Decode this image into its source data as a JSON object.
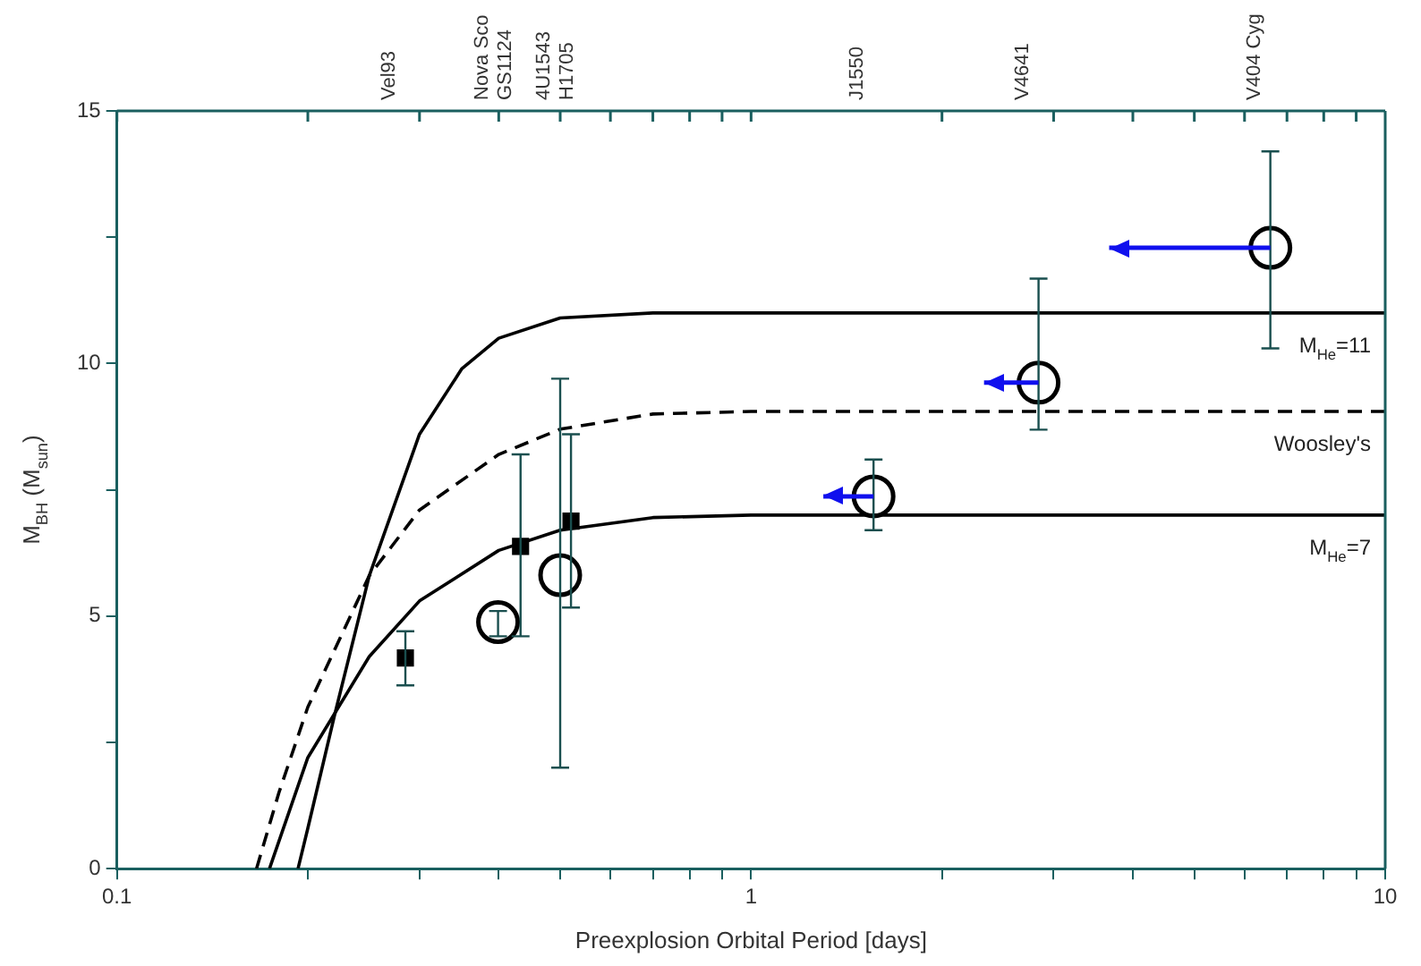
{
  "chart_data": {
    "type": "scatter",
    "xlabel": "Preexplosion Orbital Period [days]",
    "ylabel": "M$_{BH}$ (M$_{sun}$)",
    "log": "x",
    "grid": false,
    "legend": false,
    "xlim": [
      0.1,
      10
    ],
    "xticks": [
      0.1,
      {
        "value": 0.2,
        "label": null
      },
      {
        "value": 0.3,
        "label": null
      },
      {
        "value": 0.4,
        "label": null
      },
      {
        "value": 0.5,
        "label": null
      },
      {
        "value": 0.6,
        "label": null
      },
      {
        "value": 0.7,
        "label": null
      },
      {
        "value": 0.8,
        "label": null
      },
      {
        "value": 0.9,
        "label": null
      },
      1,
      {
        "value": 2,
        "label": null
      },
      {
        "value": 3,
        "label": null
      },
      {
        "value": 4,
        "label": null
      },
      {
        "value": 5,
        "label": null
      },
      {
        "value": 6,
        "label": null
      },
      {
        "value": 7,
        "label": null
      },
      {
        "value": 8,
        "label": null
      },
      {
        "value": 9,
        "label": null
      },
      10
    ],
    "annotations": [
      "Vel93",
      "Nova Sco",
      "GS1124",
      "4U1543",
      "H1705",
      "J1550",
      "V4641",
      "V404 Cyg"
    ],
    "ylim": [
      0,
      15
    ],
    "yticks": [
      0,
      {
        "value": 2.5,
        "label": null
      },
      5,
      {
        "value": 7.5,
        "label": null
      },
      10,
      {
        "value": 12.5,
        "label": null
      },
      15
    ],
    "series": [
      {
        "name": "M$_{He}$=11",
        "type": "line",
        "color": "#000000",
        "line_style": "solid",
        "marker": "none",
        "x": [
          0.193,
          0.2,
          0.22,
          0.25,
          0.3,
          0.35,
          0.4,
          0.5,
          0.7,
          1,
          10
        ],
        "values": [
          0,
          0.8,
          3,
          5.8,
          8.6,
          9.9,
          10.5,
          10.9,
          11,
          11,
          11
        ]
      },
      {
        "name": "Woosley's",
        "type": "line",
        "color": "#000000",
        "line_style": "dashed",
        "marker": "none",
        "x": [
          0.166,
          0.18,
          0.2,
          0.25,
          0.3,
          0.4,
          0.5,
          0.7,
          1,
          10
        ],
        "values": [
          0,
          1.5,
          3.2,
          5.8,
          7.1,
          8.2,
          8.7,
          9,
          9.05,
          9.05
        ]
      },
      {
        "name": "M$_{He}$=7",
        "type": "line",
        "color": "#000000",
        "line_style": "solid",
        "marker": "none",
        "x": [
          0.174,
          0.2,
          0.25,
          0.3,
          0.4,
          0.5,
          0.7,
          1,
          10
        ],
        "values": [
          0,
          2.2,
          4.2,
          5.3,
          6.3,
          6.7,
          6.95,
          7,
          7
        ]
      },
      {
        "color": "#000000",
        "marker": "square",
        "x": [
          0.285,
          0.433,
          0.52
        ],
        "values": [
          4.17,
          6.38,
          6.88
        ],
        "errors": [
          [
            3.63,
            4.7
          ],
          [
            4.6,
            8.2
          ],
          [
            5.17,
            8.6
          ]
        ]
      },
      {
        "color": "#000000",
        "marker": "circle",
        "x": [
          0.399,
          0.5,
          1.56,
          2.84,
          6.59
        ],
        "values": [
          4.88,
          5.81,
          7.37,
          9.62,
          12.29
        ],
        "errors": [
          [
            4.6,
            5.1
          ],
          [
            2.0,
            9.7
          ],
          [
            6.7,
            8.1
          ],
          [
            8.69,
            11.68
          ],
          [
            10.3,
            14.2
          ]
        ],
        "xerrors": [
          null,
          null,
          [
            1.3,
            1.56
          ],
          [
            2.33,
            2.84
          ],
          [
            3.67,
            6.59
          ]
        ]
      }
    ]
  }
}
